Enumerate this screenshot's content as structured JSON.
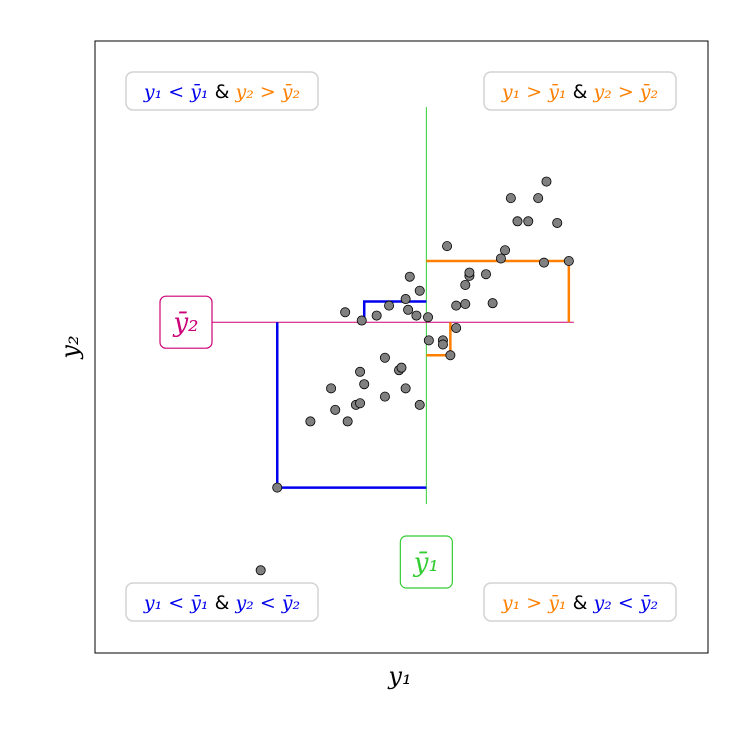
{
  "chart_data": {
    "type": "scatter",
    "xlabel": "y₁",
    "ylabel": "y₂",
    "mean_y1": 0.0,
    "mean_y2": 0.0,
    "xlim": [
      -4.0,
      3.4
    ],
    "ylim": [
      -4.0,
      3.4
    ],
    "points": [
      {
        "x": -2.0,
        "y": -3.0
      },
      {
        "x": -1.8,
        "y": -2.0
      },
      {
        "x": -1.4,
        "y": -1.2
      },
      {
        "x": -1.1,
        "y": -1.06
      },
      {
        "x": -1.15,
        "y": -0.8
      },
      {
        "x": -0.95,
        "y": -1.2
      },
      {
        "x": -0.85,
        "y": -1.0
      },
      {
        "x": -0.8,
        "y": -0.98
      },
      {
        "x": -0.75,
        "y": -0.75
      },
      {
        "x": -0.8,
        "y": -0.6
      },
      {
        "x": -0.5,
        "y": -0.9
      },
      {
        "x": -0.33,
        "y": -0.58
      },
      {
        "x": -0.25,
        "y": -0.8
      },
      {
        "x": -0.08,
        "y": -1.0
      },
      {
        "x": -0.5,
        "y": -0.43
      },
      {
        "x": -0.3,
        "y": -0.55
      },
      {
        "x": -0.98,
        "y": 0.12
      },
      {
        "x": -0.78,
        "y": 0.02
      },
      {
        "x": -0.6,
        "y": 0.08
      },
      {
        "x": -0.45,
        "y": 0.2
      },
      {
        "x": -0.25,
        "y": 0.28
      },
      {
        "x": -0.22,
        "y": 0.15
      },
      {
        "x": -0.12,
        "y": 0.08
      },
      {
        "x": -0.2,
        "y": 0.55
      },
      {
        "x": -0.08,
        "y": 0.38
      },
      {
        "x": 0.02,
        "y": 0.06
      },
      {
        "x": 0.03,
        "y": -0.22
      },
      {
        "x": 0.2,
        "y": -0.22
      },
      {
        "x": 0.2,
        "y": -0.27
      },
      {
        "x": 0.29,
        "y": -0.4
      },
      {
        "x": 0.36,
        "y": -0.07
      },
      {
        "x": 0.36,
        "y": 0.2
      },
      {
        "x": 0.47,
        "y": 0.22
      },
      {
        "x": 0.47,
        "y": 0.45
      },
      {
        "x": 0.52,
        "y": 0.56
      },
      {
        "x": 0.52,
        "y": 0.6
      },
      {
        "x": 0.72,
        "y": 0.58
      },
      {
        "x": 0.8,
        "y": 0.23
      },
      {
        "x": 0.9,
        "y": 0.77
      },
      {
        "x": 0.95,
        "y": 0.87
      },
      {
        "x": 0.25,
        "y": 0.92
      },
      {
        "x": 1.02,
        "y": 1.5
      },
      {
        "x": 1.1,
        "y": 1.22
      },
      {
        "x": 1.23,
        "y": 1.22
      },
      {
        "x": 1.35,
        "y": 1.5
      },
      {
        "x": 1.45,
        "y": 1.7
      },
      {
        "x": 1.58,
        "y": 1.2
      },
      {
        "x": 1.42,
        "y": 0.72
      },
      {
        "x": 1.72,
        "y": 0.74
      }
    ],
    "highlighted_points": [
      {
        "x": -1.8,
        "y": -2.0,
        "color": "#0000ee"
      },
      {
        "x": -0.75,
        "y": 0.25,
        "color": "#0000ee"
      },
      {
        "x": 0.29,
        "y": -0.4,
        "color": "#ff8000"
      },
      {
        "x": 1.72,
        "y": 0.74,
        "color": "#ff8000"
      }
    ],
    "colors": {
      "below_mean": "#0000ee",
      "above_mean": "#ff8000",
      "mean_y1_line": "#33cc33",
      "mean_y2_line": "#cc0077",
      "points": "#808080"
    }
  },
  "labels": {
    "mean_y1": "ȳ₁",
    "mean_y2": "ȳ₂"
  },
  "quadrants": {
    "top_left": [
      {
        "text": "y₁ < ȳ₁",
        "color": "#0000ee"
      },
      {
        "text": " & ",
        "color": "#000000"
      },
      {
        "text": "y₂ > ȳ₂",
        "color": "#ff8000"
      }
    ],
    "top_right": [
      {
        "text": "y₁ > ȳ₁",
        "color": "#ff8000"
      },
      {
        "text": " & ",
        "color": "#000000"
      },
      {
        "text": "y₂ > ȳ₂",
        "color": "#ff8000"
      }
    ],
    "bottom_left": [
      {
        "text": "y₁ < ȳ₁",
        "color": "#0000ee"
      },
      {
        "text": " & ",
        "color": "#000000"
      },
      {
        "text": "y₂ < ȳ₂",
        "color": "#0000ee"
      }
    ],
    "bottom_right": [
      {
        "text": "y₁ > ȳ₁",
        "color": "#ff8000"
      },
      {
        "text": " & ",
        "color": "#000000"
      },
      {
        "text": "y₂ < ȳ₂",
        "color": "#0000ee"
      }
    ]
  }
}
